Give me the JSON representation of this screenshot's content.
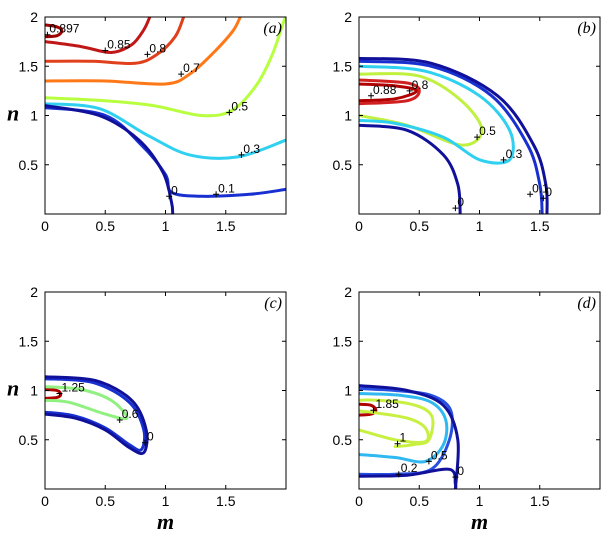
{
  "chart_data": [
    {
      "type": "line",
      "panel_label": "(a)",
      "xlabel": "",
      "ylabel": "n",
      "xlim": [
        0,
        2
      ],
      "ylim": [
        0,
        2
      ],
      "xticks": [
        "0",
        "0.5",
        "1",
        "1.5"
      ],
      "yticks": [
        "0.5",
        "1",
        "1.5",
        "2"
      ],
      "series": [
        {
          "level": "0.897",
          "color": "#a00000",
          "points": [
            [
              0,
              1.92
            ],
            [
              0.1,
              1.9
            ],
            [
              0.14,
              1.86
            ],
            [
              0.1,
              1.81
            ],
            [
              0,
              1.8
            ]
          ]
        },
        {
          "level": "0.85",
          "color": "#c01818",
          "points": [
            [
              0,
              1.75
            ],
            [
              0.3,
              1.7
            ],
            [
              0.55,
              1.64
            ],
            [
              0.72,
              1.72
            ],
            [
              0.82,
              1.87
            ],
            [
              0.87,
              2.0
            ]
          ]
        },
        {
          "level": "0.8",
          "color": "#e0401c",
          "points": [
            [
              0,
              1.55
            ],
            [
              0.4,
              1.55
            ],
            [
              0.75,
              1.53
            ],
            [
              0.93,
              1.62
            ],
            [
              1.08,
              1.8
            ],
            [
              1.15,
              2.0
            ]
          ]
        },
        {
          "level": "0.7",
          "color": "#ff7818",
          "points": [
            [
              0,
              1.35
            ],
            [
              0.5,
              1.35
            ],
            [
              1.0,
              1.32
            ],
            [
              1.2,
              1.42
            ],
            [
              1.4,
              1.64
            ],
            [
              1.56,
              1.86
            ],
            [
              1.62,
              2.0
            ]
          ]
        },
        {
          "level": "0.5",
          "color": "#b8ff40",
          "points": [
            [
              0,
              1.18
            ],
            [
              0.5,
              1.15
            ],
            [
              0.9,
              1.1
            ],
            [
              1.3,
              1.0
            ],
            [
              1.55,
              1.05
            ],
            [
              1.75,
              1.3
            ],
            [
              1.88,
              1.6
            ],
            [
              1.98,
              1.95
            ],
            [
              2.0,
              2.0
            ]
          ]
        },
        {
          "level": "0.3",
          "color": "#30d0f0",
          "points": [
            [
              0,
              1.12
            ],
            [
              0.45,
              1.07
            ],
            [
              0.85,
              0.8
            ],
            [
              1.2,
              0.6
            ],
            [
              1.6,
              0.58
            ],
            [
              2.0,
              0.75
            ]
          ]
        },
        {
          "level": "0.1",
          "color": "#1830d0",
          "points": [
            [
              0,
              1.08
            ],
            [
              0.5,
              1.0
            ],
            [
              0.8,
              0.7
            ],
            [
              1.0,
              0.4
            ],
            [
              1.05,
              0.22
            ],
            [
              1.3,
              0.18
            ],
            [
              1.7,
              0.2
            ],
            [
              2.0,
              0.25
            ]
          ]
        },
        {
          "level": "0",
          "color": "#10109a",
          "points": [
            [
              0,
              1.1
            ],
            [
              0.45,
              1.0
            ],
            [
              0.78,
              0.75
            ],
            [
              0.98,
              0.42
            ],
            [
              1.05,
              0.12
            ],
            [
              1.06,
              0
            ]
          ]
        }
      ],
      "labels": [
        {
          "text": "0.897",
          "x": 0.02,
          "y": 1.82
        },
        {
          "text": "0.85",
          "x": 0.5,
          "y": 1.66
        },
        {
          "text": "0.8",
          "x": 0.85,
          "y": 1.62
        },
        {
          "text": "0.7",
          "x": 1.13,
          "y": 1.42
        },
        {
          "text": "0.5",
          "x": 1.53,
          "y": 1.03
        },
        {
          "text": "0.3",
          "x": 1.63,
          "y": 0.6
        },
        {
          "text": "0.1",
          "x": 1.42,
          "y": 0.2
        },
        {
          "text": "0",
          "x": 1.03,
          "y": 0.18
        }
      ]
    },
    {
      "type": "line",
      "panel_label": "(b)",
      "xlabel": "",
      "ylabel": "",
      "xlim": [
        0,
        2
      ],
      "ylim": [
        0,
        2
      ],
      "xticks": [
        "0",
        "0.5",
        "1",
        "1.5"
      ],
      "yticks": [
        "0.5",
        "1",
        "1.5",
        "2"
      ],
      "series": [
        {
          "level": "0.88",
          "color": "#b00000",
          "points": [
            [
              0,
              1.32
            ],
            [
              0.3,
              1.3
            ],
            [
              0.48,
              1.25
            ],
            [
              0.3,
              1.17
            ],
            [
              0,
              1.15
            ]
          ]
        },
        {
          "level": "0.8",
          "color": "#d02020",
          "points": [
            [
              0,
              1.36
            ],
            [
              0.4,
              1.33
            ],
            [
              0.5,
              1.25
            ],
            [
              0.4,
              1.15
            ],
            [
              0,
              1.12
            ]
          ]
        },
        {
          "level": "0.5",
          "color": "#c0f040",
          "points": [
            [
              0,
              1.42
            ],
            [
              0.5,
              1.4
            ],
            [
              0.85,
              1.15
            ],
            [
              1.02,
              0.85
            ],
            [
              0.85,
              0.7
            ],
            [
              0.4,
              0.9
            ],
            [
              0,
              1.0
            ]
          ]
        },
        {
          "level": "0.3",
          "color": "#30d0f0",
          "points": [
            [
              0,
              1.5
            ],
            [
              0.55,
              1.45
            ],
            [
              1.0,
              1.2
            ],
            [
              1.25,
              0.85
            ],
            [
              1.25,
              0.55
            ],
            [
              1.0,
              0.55
            ],
            [
              0.7,
              0.78
            ],
            [
              0.3,
              0.92
            ],
            [
              0,
              0.95
            ]
          ]
        },
        {
          "level": "0.1",
          "color": "#1830d0",
          "points": [
            [
              0,
              1.55
            ],
            [
              0.6,
              1.5
            ],
            [
              1.1,
              1.2
            ],
            [
              1.4,
              0.7
            ],
            [
              1.5,
              0.3
            ],
            [
              1.52,
              0
            ]
          ]
        },
        {
          "level": "0",
          "color": "#10109a",
          "points": [
            [
              0,
              1.58
            ],
            [
              0.6,
              1.53
            ],
            [
              1.15,
              1.2
            ],
            [
              1.45,
              0.7
            ],
            [
              1.55,
              0.3
            ],
            [
              1.56,
              0
            ]
          ]
        },
        {
          "level": "0",
          "color": "#10109a",
          "points": [
            [
              0,
              0.9
            ],
            [
              0.4,
              0.85
            ],
            [
              0.7,
              0.6
            ],
            [
              0.82,
              0.3
            ],
            [
              0.84,
              0
            ]
          ]
        }
      ],
      "labels": [
        {
          "text": "0.88",
          "x": 0.1,
          "y": 1.2
        },
        {
          "text": "0.8",
          "x": 0.42,
          "y": 1.25
        },
        {
          "text": "0.5",
          "x": 0.98,
          "y": 0.78
        },
        {
          "text": "0.3",
          "x": 1.2,
          "y": 0.55
        },
        {
          "text": "0.1",
          "x": 1.42,
          "y": 0.2
        },
        {
          "text": "0",
          "x": 1.53,
          "y": 0.16
        },
        {
          "text": "0",
          "x": 0.8,
          "y": 0.06
        }
      ]
    },
    {
      "type": "line",
      "panel_label": "(c)",
      "xlabel": "m",
      "ylabel": "n",
      "xlim": [
        0,
        2
      ],
      "ylim": [
        0,
        2
      ],
      "xticks": [
        "0",
        "0.5",
        "1",
        "1.5"
      ],
      "yticks": [
        "0.5",
        "1",
        "1.5",
        "2"
      ],
      "series": [
        {
          "level": "1.25",
          "color": "#b00000",
          "points": [
            [
              0,
              1.01
            ],
            [
              0.1,
              1.0
            ],
            [
              0.13,
              0.96
            ],
            [
              0.1,
              0.93
            ],
            [
              0,
              0.92
            ]
          ]
        },
        {
          "level": "0.6",
          "color": "#90f080",
          "points": [
            [
              0,
              1.04
            ],
            [
              0.3,
              1.01
            ],
            [
              0.55,
              0.9
            ],
            [
              0.68,
              0.72
            ],
            [
              0.5,
              0.76
            ],
            [
              0.2,
              0.88
            ],
            [
              0,
              0.9
            ]
          ]
        },
        {
          "level": "0",
          "color": "#1830d0",
          "points": [
            [
              0,
              1.12
            ],
            [
              0.4,
              1.08
            ],
            [
              0.7,
              0.88
            ],
            [
              0.82,
              0.6
            ],
            [
              0.8,
              0.4
            ],
            [
              0.7,
              0.45
            ],
            [
              0.5,
              0.62
            ],
            [
              0.25,
              0.74
            ],
            [
              0,
              0.78
            ]
          ]
        },
        {
          "level": "0",
          "color": "#10109a",
          "points": [
            [
              0,
              1.14
            ],
            [
              0.42,
              1.1
            ],
            [
              0.72,
              0.9
            ],
            [
              0.84,
              0.6
            ],
            [
              0.82,
              0.37
            ],
            [
              0.7,
              0.42
            ],
            [
              0.5,
              0.6
            ],
            [
              0.25,
              0.72
            ],
            [
              0,
              0.76
            ]
          ]
        }
      ],
      "labels": [
        {
          "text": "1.25",
          "x": 0.12,
          "y": 0.97
        },
        {
          "text": "0.6",
          "x": 0.62,
          "y": 0.7
        },
        {
          "text": "0",
          "x": 0.83,
          "y": 0.47
        }
      ]
    },
    {
      "type": "line",
      "panel_label": "(d)",
      "xlabel": "m",
      "ylabel": "",
      "xlim": [
        0,
        2
      ],
      "ylim": [
        0,
        2
      ],
      "xticks": [
        "0",
        "0.5",
        "1",
        "1.5"
      ],
      "yticks": [
        "0.5",
        "1",
        "1.5",
        "2"
      ],
      "series": [
        {
          "level": "1.85",
          "color": "#b00000",
          "points": [
            [
              0,
              0.86
            ],
            [
              0.1,
              0.85
            ],
            [
              0.14,
              0.8
            ],
            [
              0.1,
              0.76
            ],
            [
              0,
              0.75
            ]
          ]
        },
        {
          "level": "1",
          "color": "#c8f040",
          "points": [
            [
              0,
              0.6
            ],
            [
              0.3,
              0.5
            ],
            [
              0.55,
              0.48
            ],
            [
              0.55,
              0.62
            ],
            [
              0.4,
              0.72
            ],
            [
              0.1,
              0.78
            ],
            [
              0,
              0.8
            ],
            [
              0,
              0.9
            ],
            [
              0.4,
              0.87
            ],
            [
              0.6,
              0.75
            ],
            [
              0.58,
              0.5
            ],
            [
              0.45,
              0.45
            ],
            [
              0.3,
              0.43
            ]
          ]
        },
        {
          "level": "0.5",
          "color": "#30b8f0",
          "points": [
            [
              0,
              0.35
            ],
            [
              0.3,
              0.32
            ],
            [
              0.55,
              0.28
            ],
            [
              0.7,
              0.45
            ],
            [
              0.72,
              0.7
            ],
            [
              0.6,
              0.88
            ],
            [
              0.35,
              0.95
            ],
            [
              0,
              0.97
            ]
          ]
        },
        {
          "level": "0.2",
          "color": "#2850e0",
          "points": [
            [
              0,
              0.15
            ],
            [
              0.3,
              0.15
            ],
            [
              0.6,
              0.2
            ],
            [
              0.75,
              0.5
            ],
            [
              0.76,
              0.8
            ],
            [
              0.6,
              0.95
            ],
            [
              0.3,
              1.0
            ],
            [
              0,
              1.02
            ]
          ]
        },
        {
          "level": "0",
          "color": "#10109a",
          "points": [
            [
              0,
              0.13
            ],
            [
              0.4,
              0.14
            ],
            [
              0.75,
              0.2
            ],
            [
              0.8,
              0.05
            ],
            [
              0.8,
              0.0
            ]
          ]
        },
        {
          "level": "0",
          "color": "#10109a",
          "points": [
            [
              0,
              1.05
            ],
            [
              0.4,
              1.0
            ],
            [
              0.7,
              0.85
            ],
            [
              0.82,
              0.5
            ],
            [
              0.8,
              0.0
            ]
          ]
        }
      ],
      "labels": [
        {
          "text": "1.85",
          "x": 0.12,
          "y": 0.8
        },
        {
          "text": "1",
          "x": 0.32,
          "y": 0.46
        },
        {
          "text": "0.5",
          "x": 0.58,
          "y": 0.28
        },
        {
          "text": "0.2",
          "x": 0.33,
          "y": 0.15
        },
        {
          "text": "0",
          "x": 0.8,
          "y": 0.12
        }
      ]
    }
  ]
}
